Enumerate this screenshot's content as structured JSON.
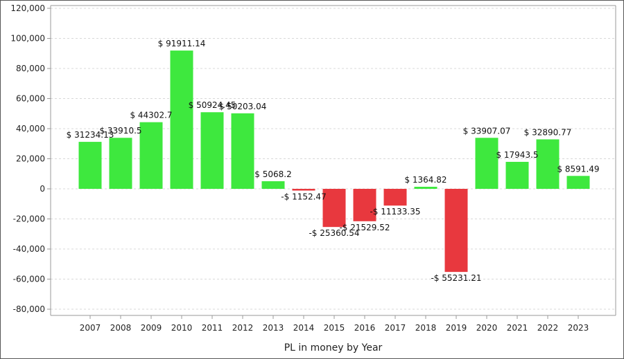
{
  "chart_data": {
    "type": "bar",
    "xlabel": "PL in money by Year",
    "ylabel": "",
    "title": "",
    "ylim": [
      -85000,
      120000
    ],
    "y_ticks": [
      120000,
      100000,
      80000,
      60000,
      40000,
      20000,
      0,
      -20000,
      -40000,
      -60000,
      -80000
    ],
    "y_tick_labels": [
      "120,000",
      "100,000",
      "80,000",
      "60,000",
      "40,000",
      "20,000",
      "0",
      "-20,000",
      "-40,000",
      "-60,000",
      "-80,000"
    ],
    "categories": [
      "2007",
      "2008",
      "2009",
      "2010",
      "2011",
      "2012",
      "2013",
      "2014",
      "2015",
      "2016",
      "2017",
      "2018",
      "2019",
      "2020",
      "2021",
      "2022",
      "2023"
    ],
    "values": [
      31234.13,
      33910.5,
      44302.7,
      91911.14,
      50924.45,
      50203.04,
      5068.2,
      -1152.47,
      -25360.54,
      -21529.52,
      -11133.35,
      1364.82,
      -55231.21,
      33907.07,
      17943.5,
      32890.77,
      8591.49
    ],
    "data_labels": [
      "$ 31234.13",
      "$ 33910.5",
      "$ 44302.7",
      "$ 91911.14",
      "$ 50924.45",
      "$ 50203.04",
      "$ 5068.2",
      "-$ 1152.47",
      "-$ 25360.54",
      "-$ 21529.52",
      "-$ 11133.35",
      "$ 1364.82",
      "-$ 55231.21",
      "$ 33907.07",
      "$ 17943.5",
      "$ 32890.77",
      "$ 8591.49"
    ],
    "colors": {
      "positive": "#3ee83e",
      "negative": "#e8383e",
      "grid": "#d8d8d8",
      "axis": "#999999"
    },
    "grid": true
  }
}
